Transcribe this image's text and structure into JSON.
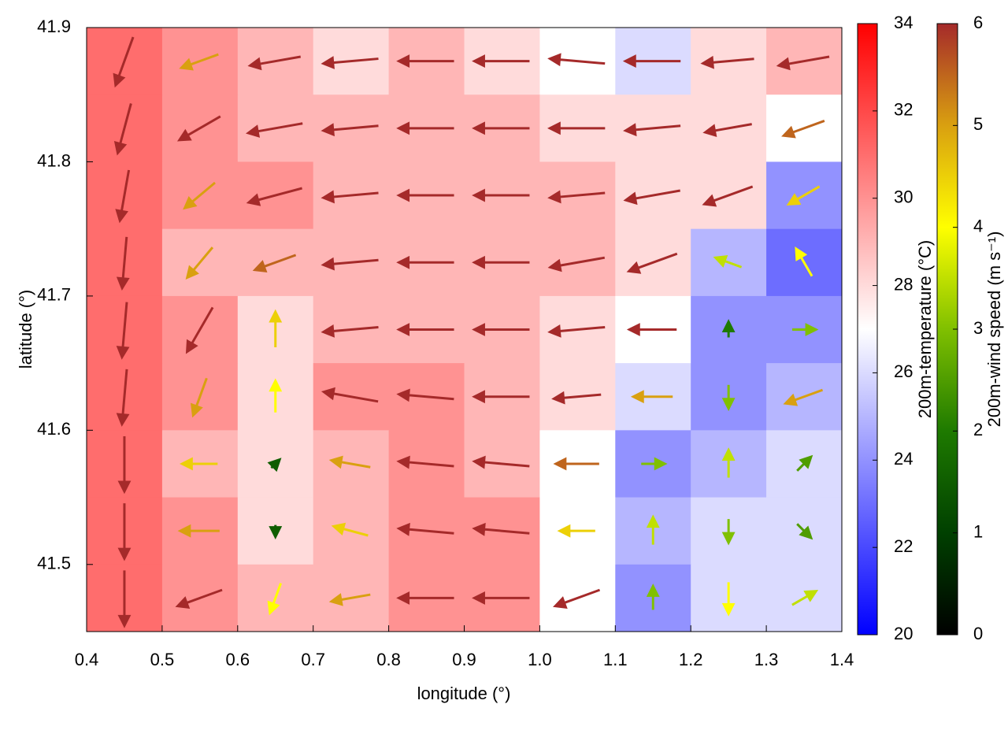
{
  "chart_data": {
    "type": "vector-field",
    "xlabel": "longitude (°)",
    "ylabel": "latitude (°)",
    "xlim": [
      0.4,
      1.4
    ],
    "ylim": [
      41.45,
      41.9
    ],
    "xticks": [
      0.4,
      0.5,
      0.6,
      0.7,
      0.8,
      0.9,
      {
        "value": 1,
        "label": "1.0"
      },
      1.1,
      1.2,
      1.3,
      1.4
    ],
    "yticks": [
      41.5,
      41.6,
      41.7,
      41.8,
      41.9
    ],
    "lon": [
      0.45,
      0.55,
      0.65,
      0.75,
      0.85,
      0.95,
      1.05,
      1.15,
      1.25,
      1.35
    ],
    "lat": [
      41.875,
      41.825,
      41.775,
      41.725,
      41.675,
      41.625,
      41.575,
      41.525,
      41.475
    ],
    "temperature": [
      [
        31,
        30,
        29,
        28,
        29,
        28,
        27,
        26,
        28,
        29
      ],
      [
        31,
        30,
        29,
        29,
        29,
        29,
        28,
        28,
        28,
        27
      ],
      [
        31,
        30,
        30,
        29,
        29,
        29,
        29,
        28,
        28,
        24
      ],
      [
        31,
        29,
        29,
        29,
        29,
        29,
        29,
        28,
        25,
        23
      ],
      [
        31,
        30,
        28,
        29,
        29,
        29,
        28,
        27,
        24,
        24
      ],
      [
        31,
        30,
        28,
        30,
        30,
        29,
        28,
        26,
        24,
        25
      ],
      [
        31,
        29,
        28,
        29,
        30,
        29,
        27,
        24,
        25,
        26
      ],
      [
        31,
        30,
        28,
        29,
        30,
        30,
        27,
        25,
        26,
        26
      ],
      [
        31,
        30,
        29,
        29,
        30,
        30,
        27,
        24,
        26,
        26
      ]
    ],
    "wind_speed": [
      [
        6.5,
        5,
        6.5,
        7,
        7,
        7,
        7,
        7,
        6.5,
        6.5
      ],
      [
        6.5,
        6,
        7,
        7,
        7,
        7,
        7,
        7,
        6,
        5.5
      ],
      [
        6.5,
        5,
        7,
        7,
        7,
        7,
        7,
        7,
        6.5,
        4.5
      ],
      [
        6.5,
        5,
        5.5,
        7,
        7,
        7,
        7,
        6.5,
        3.5,
        4
      ],
      [
        7,
        6.5,
        4.5,
        7,
        7,
        7,
        7,
        6,
        2,
        3
      ],
      [
        7,
        5,
        4,
        7,
        7,
        7,
        6,
        5,
        3,
        5
      ],
      [
        7,
        4.5,
        1.5,
        5,
        7,
        7,
        5.5,
        3,
        3.5,
        2.5
      ],
      [
        7,
        5,
        1.5,
        4.5,
        7,
        7,
        4.5,
        3.5,
        3,
        2.5
      ],
      [
        7,
        6,
        4,
        5,
        7,
        7,
        6,
        3,
        4,
        3.5
      ]
    ],
    "wind_direction": [
      [
        250,
        200,
        190,
        185,
        180,
        180,
        175,
        180,
        185,
        190
      ],
      [
        255,
        210,
        190,
        185,
        180,
        180,
        180,
        185,
        190,
        200
      ],
      [
        260,
        220,
        195,
        185,
        180,
        180,
        185,
        190,
        200,
        210
      ],
      [
        265,
        230,
        200,
        185,
        180,
        180,
        190,
        200,
        160,
        120
      ],
      [
        265,
        240,
        90,
        185,
        180,
        180,
        185,
        180,
        90,
        0
      ],
      [
        265,
        250,
        90,
        170,
        175,
        180,
        185,
        180,
        270,
        200
      ],
      [
        270,
        180,
        45,
        170,
        175,
        175,
        180,
        0,
        90,
        45
      ],
      [
        270,
        180,
        270,
        165,
        175,
        175,
        180,
        90,
        270,
        315
      ],
      [
        270,
        200,
        250,
        190,
        180,
        180,
        200,
        90,
        270,
        30
      ]
    ],
    "temperature_colorbar": {
      "label": "200m-temperature (°C)",
      "zlim": [
        20,
        34
      ],
      "ticks": [
        20,
        22,
        24,
        26,
        28,
        30,
        32,
        34
      ],
      "colors": [
        "#0000ff",
        "#ffffff",
        "#ff0000"
      ]
    },
    "wind_colorbar": {
      "label": "200m-wind speed (m s⁻¹)",
      "zlim": [
        0,
        6
      ],
      "ticks": [
        0,
        1,
        2,
        3,
        4,
        5,
        6
      ],
      "colors": [
        "#000000",
        "#004000",
        "#1e7a00",
        "#80c000",
        "#ffff00",
        "#d9a010",
        "#a52a2a"
      ]
    }
  }
}
